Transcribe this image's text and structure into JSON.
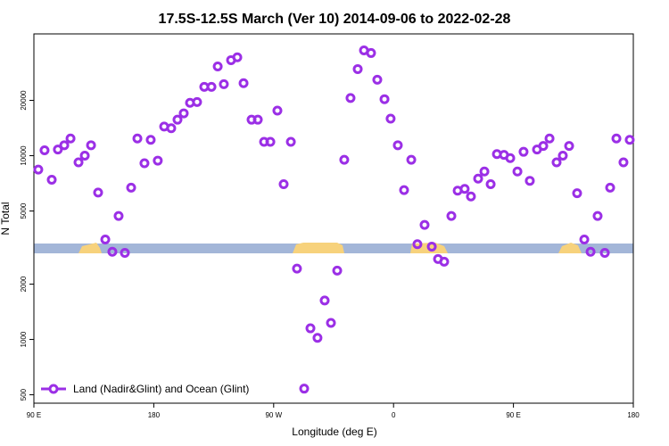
{
  "chart_data": {
    "type": "scatter",
    "title": "17.5S-12.5S March (Ver 10)   2014-09-06 to 2022-02-28",
    "xlabel": "Longitude (deg E)",
    "ylabel": "N Total",
    "y_scale": "log",
    "legend": "bottom-left",
    "xlim": [
      90,
      540
    ],
    "xticks": [
      {
        "value": 90,
        "label": "90 E"
      },
      {
        "value": 180,
        "label": "180"
      },
      {
        "value": 270,
        "label": "90 W"
      },
      {
        "value": 360,
        "label": "0"
      },
      {
        "value": 450,
        "label": "90 E"
      },
      {
        "value": 540,
        "label": "180"
      }
    ],
    "ylim": [
      450,
      46000
    ],
    "yticks": [
      500,
      1000,
      2000,
      5000,
      10000,
      20000
    ],
    "x": [
      93.3,
      98,
      103.4,
      108,
      112.8,
      117.5,
      123.5,
      128.2,
      132.9,
      138.2,
      143.6,
      148.9,
      153.6,
      158.3,
      163,
      167.7,
      173,
      177.7,
      183,
      187.8,
      193.1,
      197.8,
      202.5,
      207.2,
      212.5,
      217.9,
      223.3,
      228,
      232.6,
      238,
      242.7,
      247.4,
      253.4,
      258.1,
      262.8,
      267.5,
      272.8,
      277.5,
      282.9,
      287.5,
      292.9,
      297.6,
      302.9,
      308.3,
      313,
      317.7,
      323,
      327.7,
      333.1,
      337.8,
      343.1,
      347.8,
      353.2,
      357.8,
      363.2,
      367.9,
      373.3,
      377.9,
      383.3,
      388.7,
      393.4,
      398,
      403.4,
      408.1,
      413.4,
      418.1,
      423.5,
      428.2,
      432.9,
      437.6,
      442.9,
      447.6,
      453,
      457.6,
      462.3,
      467.7,
      472.4,
      477.1,
      482.4,
      487.1,
      491.8,
      497.8,
      503.2,
      507.9,
      513.2,
      518.6,
      522.6,
      527.3,
      532.6,
      537.3
    ],
    "series": [
      {
        "name": "Land (Nadir&Glint) and Ocean (Glint)",
        "color": "#9b2fe6",
        "values": [
          8400,
          10700,
          7400,
          10800,
          11400,
          12400,
          9200,
          10000,
          11400,
          6300,
          3500,
          3000,
          4700,
          2960,
          6700,
          12400,
          9100,
          12200,
          9400,
          14400,
          14100,
          15700,
          17000,
          19400,
          19600,
          23700,
          23700,
          30600,
          24500,
          33100,
          34300,
          24800,
          15700,
          15700,
          11900,
          11900,
          17600,
          7000,
          11900,
          2430,
          540,
          1150,
          1020,
          1630,
          1230,
          2370,
          9500,
          20600,
          29600,
          37400,
          36200,
          25900,
          20300,
          15900,
          11400,
          6500,
          9500,
          3300,
          4200,
          3200,
          2740,
          2650,
          4700,
          6450,
          6600,
          6000,
          7500,
          8200,
          7000,
          10200,
          10100,
          9700,
          8200,
          10500,
          7300,
          10800,
          11300,
          12400,
          9200,
          10000,
          11300,
          6250,
          3500,
          3000,
          4700,
          2960,
          6700,
          12400,
          9200,
          12200
        ]
      }
    ]
  }
}
